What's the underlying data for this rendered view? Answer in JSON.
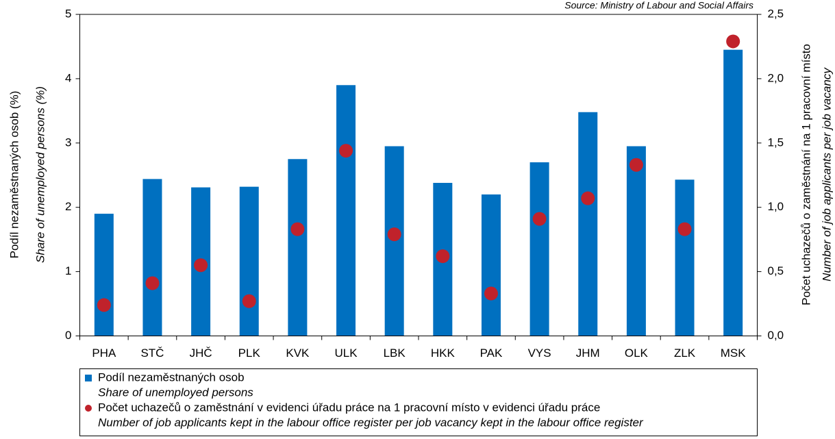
{
  "chart_data": {
    "type": "bar",
    "source": "Source: Ministry of Labour and Social Affairs",
    "categories": [
      "PHA",
      "STČ",
      "JHČ",
      "PLK",
      "KVK",
      "ULK",
      "LBK",
      "HKK",
      "PAK",
      "VYS",
      "JHM",
      "OLK",
      "ZLK",
      "MSK"
    ],
    "series": [
      {
        "name": "Podíl nezaměstnaných osob",
        "name_en": "Share of unemployed persons",
        "color": "#0070c0",
        "type": "bar",
        "values": [
          1.9,
          2.44,
          2.31,
          2.32,
          2.75,
          3.9,
          2.95,
          2.38,
          2.2,
          2.7,
          3.48,
          2.95,
          2.43,
          4.45
        ]
      },
      {
        "name": "Počet uchazečů o zaměstnání v evidenci úřadu práce na 1 pracovní místo v evidenci úřadu práce",
        "name_en": "Number of job applicants kept in the labour office register per job vacancy kept in the labour office register",
        "color": "#c0222b",
        "type": "scatter",
        "axis": "y2",
        "values": [
          0.24,
          0.41,
          0.55,
          0.27,
          0.83,
          1.44,
          0.79,
          0.62,
          0.33,
          0.91,
          1.07,
          1.33,
          0.83,
          2.29
        ]
      }
    ],
    "ylabel": [
      "Podíl nezaměstnaných osob (%)",
      "Share of unemployed persons (%)"
    ],
    "y2label": [
      "Počet uchazečů o zaměstnání na 1 pracovní místo",
      "Number of job applicants per job vacancy"
    ],
    "ylim": [
      0,
      5
    ],
    "yticks": [
      0,
      1,
      2,
      3,
      4,
      5
    ],
    "y2lim": [
      0,
      2.5
    ],
    "y2ticks": [
      {
        "value": 0,
        "label": "0,0"
      },
      {
        "value": 0.5,
        "label": "0,5"
      },
      {
        "value": 1,
        "label": "1,0"
      },
      {
        "value": 1.5,
        "label": "1,5"
      },
      {
        "value": 2,
        "label": "2,0"
      },
      {
        "value": 2.5,
        "label": "2,5"
      }
    ],
    "grid": false
  }
}
